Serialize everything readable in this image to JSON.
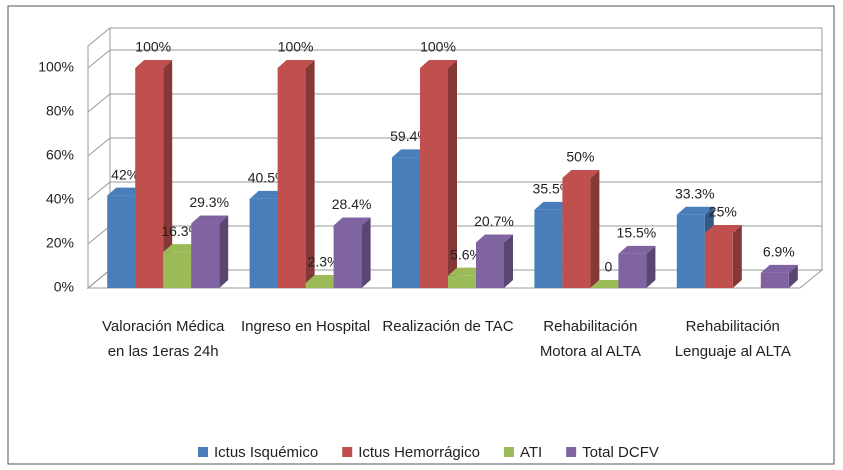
{
  "chart_data": {
    "type": "bar3d",
    "categories": [
      "Valoración Médica en las 1eras 24h",
      "Ingreso en Hospital",
      "Realización de TAC",
      "Rehabilitación Motora al ALTA",
      "Rehabilitación Lenguaje al ALTA"
    ],
    "series": [
      {
        "name": "Ictus Isquémico",
        "color": "#4a7ebb",
        "values": [
          42,
          40.5,
          59.4,
          35.5,
          33.3
        ],
        "value_labels": [
          "42%",
          "40.5%",
          "59.4%",
          "35.5%",
          "33.3%"
        ]
      },
      {
        "name": "Ictus Hemorrágico",
        "color": "#c0504d",
        "values": [
          100,
          100,
          100,
          50,
          25
        ],
        "value_labels": [
          "100%",
          "100%",
          "100%",
          "50%",
          "25%"
        ]
      },
      {
        "name": "ATI",
        "color": "#9bbb59",
        "values": [
          16.3,
          2.3,
          5.6,
          0,
          null
        ],
        "value_labels": [
          "16.3%",
          "2.3%",
          "5.6%",
          "0",
          null
        ]
      },
      {
        "name": "Total DCFV",
        "color": "#8064a2",
        "values": [
          29.3,
          28.4,
          20.7,
          15.5,
          6.9
        ],
        "value_labels": [
          "29.3%",
          "28.4%",
          "20.7%",
          "15.5%",
          "6.9%"
        ]
      }
    ],
    "ylim": [
      0,
      100
    ],
    "yticks": [
      {
        "value": 0,
        "label": "0%"
      },
      {
        "value": 20,
        "label": "20%"
      },
      {
        "value": 40,
        "label": "40%"
      },
      {
        "value": 60,
        "label": "60%"
      },
      {
        "value": 80,
        "label": "80%"
      },
      {
        "value": 100,
        "label": "100%"
      }
    ],
    "grid": true,
    "legend": "bottom"
  }
}
